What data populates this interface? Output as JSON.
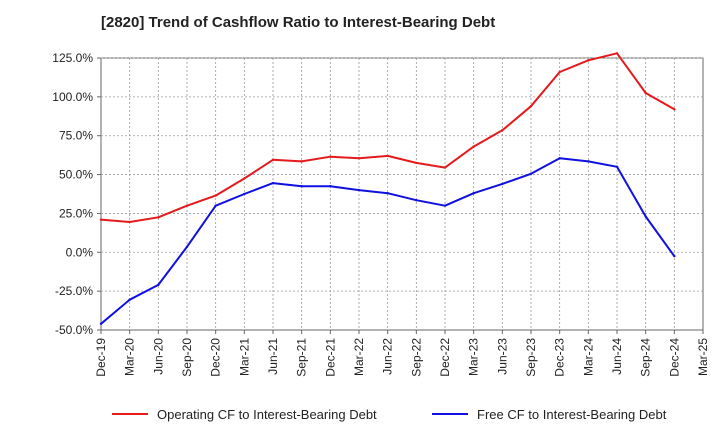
{
  "chart_data": {
    "type": "line",
    "title": "[2820]  Trend of Cashflow Ratio to Interest-Bearing Debt",
    "xlabel": "",
    "ylabel": "",
    "ylim": [
      -50,
      125
    ],
    "yticks": [
      "125.0%",
      "100.0%",
      "75.0%",
      "50.0%",
      "25.0%",
      "0.0%",
      "-25.0%",
      "-50.0%"
    ],
    "ytick_values": [
      125,
      100,
      75,
      50,
      25,
      0,
      -25,
      -50
    ],
    "categories": [
      "Dec-19",
      "Mar-20",
      "Jun-20",
      "Sep-20",
      "Dec-20",
      "Mar-21",
      "Jun-21",
      "Sep-21",
      "Dec-21",
      "Mar-22",
      "Jun-22",
      "Sep-22",
      "Dec-22",
      "Mar-23",
      "Jun-23",
      "Sep-23",
      "Dec-23",
      "Mar-24",
      "Jun-24",
      "Sep-24",
      "Dec-24",
      "Mar-25"
    ],
    "grid": true,
    "legend_position": "bottom",
    "series": [
      {
        "name": "Operating CF to Interest-Bearing Debt",
        "color": "#e41a1c",
        "values": [
          21.0,
          19.5,
          22.5,
          30.0,
          36.5,
          47.5,
          59.5,
          58.5,
          61.5,
          60.5,
          62.0,
          57.5,
          54.5,
          68.0,
          78.5,
          94.0,
          116.0,
          123.5,
          128.0,
          102.5,
          92.0,
          null
        ]
      },
      {
        "name": "Free CF to Interest-Bearing Debt",
        "color": "#1010e0",
        "values": [
          -46.0,
          -30.5,
          -21.0,
          3.5,
          30.0,
          37.5,
          44.5,
          42.5,
          42.5,
          40.0,
          38.0,
          33.5,
          30.0,
          38.0,
          44.0,
          50.5,
          60.5,
          58.5,
          55.0,
          23.0,
          -2.5,
          null
        ]
      }
    ]
  }
}
